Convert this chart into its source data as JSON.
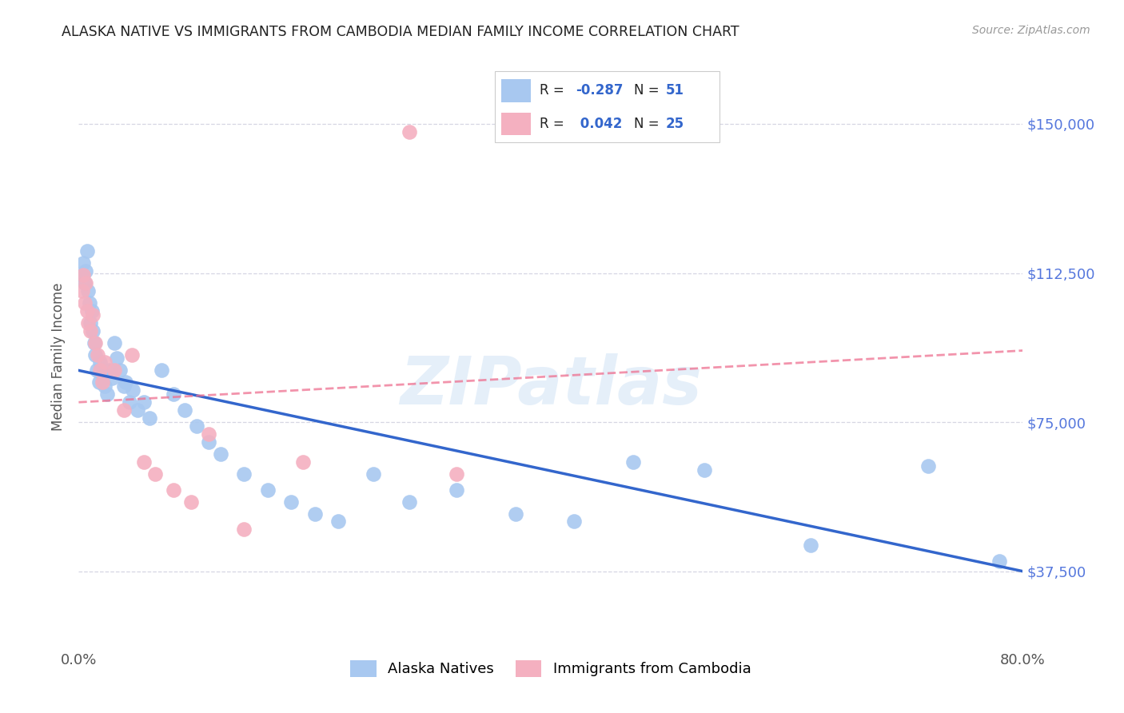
{
  "title": "ALASKA NATIVE VS IMMIGRANTS FROM CAMBODIA MEDIAN FAMILY INCOME CORRELATION CHART",
  "source": "Source: ZipAtlas.com",
  "ylabel": "Median Family Income",
  "xmin": 0.0,
  "xmax": 0.8,
  "ymin": 18000,
  "ymax": 165000,
  "yticks": [
    37500,
    75000,
    112500,
    150000
  ],
  "ytick_labels": [
    "$37,500",
    "$75,000",
    "$112,500",
    "$150,000"
  ],
  "xticks": [
    0.0,
    0.1,
    0.2,
    0.3,
    0.4,
    0.5,
    0.6,
    0.7,
    0.8
  ],
  "blue_color": "#A8C8F0",
  "pink_color": "#F4B0C0",
  "trend_blue_color": "#3366CC",
  "trend_pink_color": "#EE7090",
  "watermark_color": "#AACCEE",
  "title_color": "#222222",
  "source_color": "#999999",
  "ylabel_color": "#555555",
  "ytick_color": "#5577DD",
  "xtick_color": "#555555",
  "grid_color": "#CCCCDD",
  "legend_r_blue": "-0.287",
  "legend_n_blue": "51",
  "legend_r_pink": "0.042",
  "legend_n_pink": "25",
  "legend_label_blue": "Alaska Natives",
  "legend_label_pink": "Immigrants from Cambodia",
  "watermark": "ZIPatlas",
  "blue_points_x": [
    0.003,
    0.004,
    0.005,
    0.006,
    0.007,
    0.008,
    0.009,
    0.01,
    0.011,
    0.012,
    0.013,
    0.014,
    0.015,
    0.017,
    0.018,
    0.02,
    0.022,
    0.024,
    0.026,
    0.028,
    0.03,
    0.032,
    0.035,
    0.038,
    0.04,
    0.043,
    0.046,
    0.05,
    0.055,
    0.06,
    0.07,
    0.08,
    0.09,
    0.1,
    0.11,
    0.12,
    0.14,
    0.16,
    0.18,
    0.2,
    0.22,
    0.25,
    0.28,
    0.32,
    0.37,
    0.42,
    0.47,
    0.53,
    0.62,
    0.72,
    0.78
  ],
  "blue_points_y": [
    112000,
    115000,
    110000,
    113000,
    118000,
    108000,
    105000,
    100000,
    103000,
    98000,
    95000,
    92000,
    88000,
    85000,
    90000,
    87000,
    84000,
    82000,
    88000,
    86000,
    95000,
    91000,
    88000,
    84000,
    85000,
    80000,
    83000,
    78000,
    80000,
    76000,
    88000,
    82000,
    78000,
    74000,
    70000,
    67000,
    62000,
    58000,
    55000,
    52000,
    50000,
    62000,
    55000,
    58000,
    52000,
    50000,
    65000,
    63000,
    44000,
    64000,
    40000
  ],
  "pink_points_x": [
    0.003,
    0.004,
    0.005,
    0.006,
    0.007,
    0.008,
    0.01,
    0.012,
    0.014,
    0.016,
    0.018,
    0.02,
    0.022,
    0.03,
    0.038,
    0.045,
    0.055,
    0.065,
    0.08,
    0.095,
    0.11,
    0.14,
    0.19,
    0.28,
    0.32
  ],
  "pink_points_y": [
    108000,
    112000,
    105000,
    110000,
    103000,
    100000,
    98000,
    102000,
    95000,
    92000,
    88000,
    85000,
    90000,
    88000,
    78000,
    92000,
    65000,
    62000,
    58000,
    55000,
    72000,
    48000,
    65000,
    148000,
    62000
  ],
  "blue_trend_x": [
    0.0,
    0.8
  ],
  "blue_trend_y": [
    88000,
    37500
  ],
  "pink_trend_x": [
    0.0,
    0.8
  ],
  "pink_trend_y": [
    80000,
    93000
  ]
}
